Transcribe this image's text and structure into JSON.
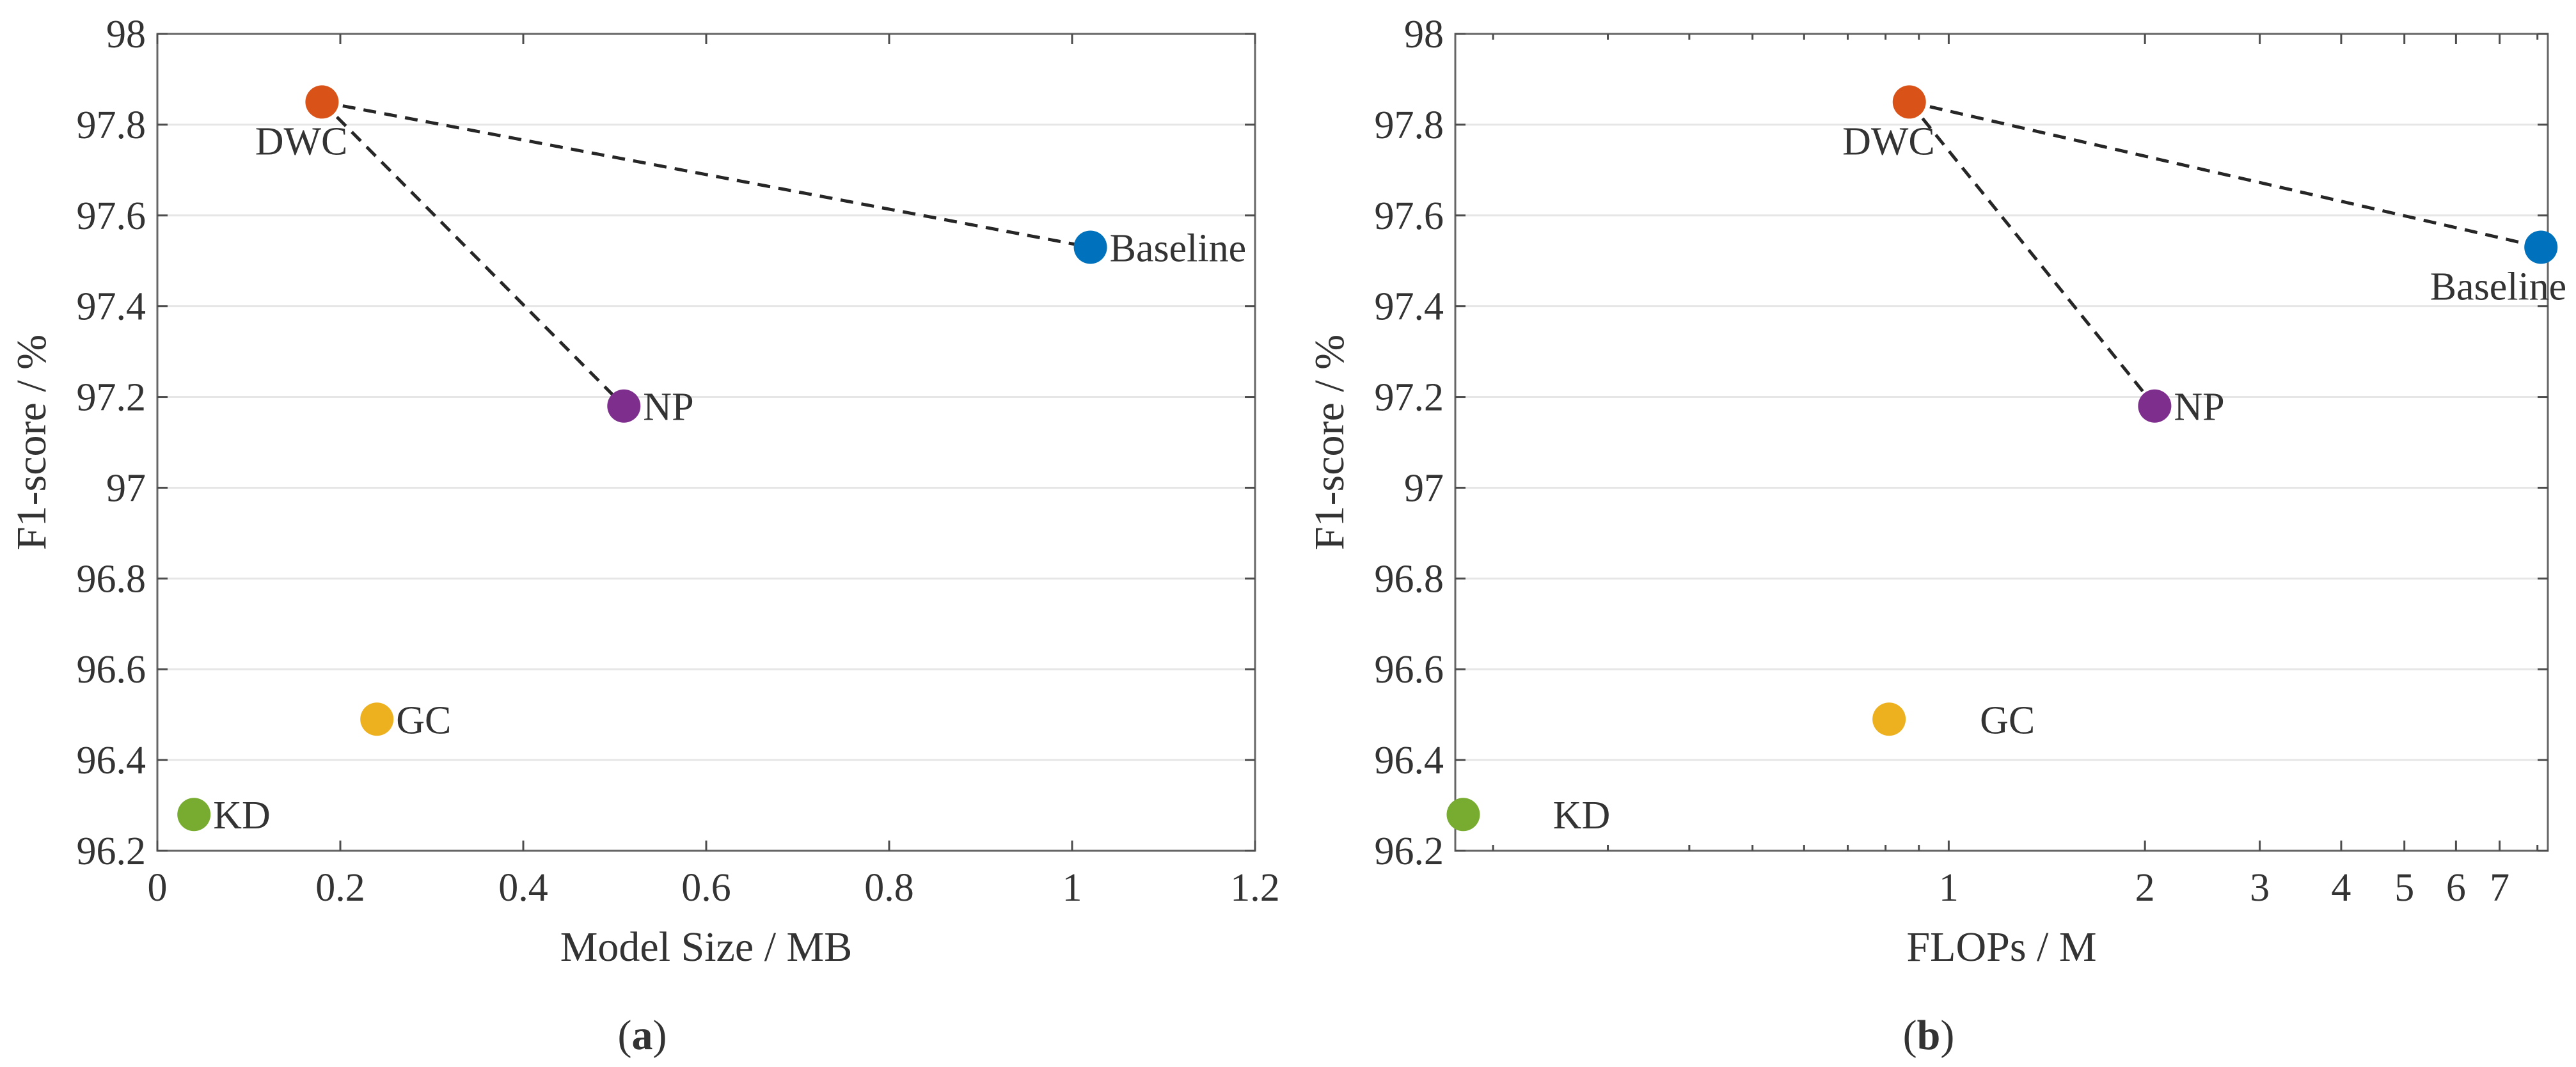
{
  "chart_data": [
    {
      "type": "scatter",
      "caption": "(a)",
      "caption_letter": "a",
      "xlabel": "Model Size / MB",
      "ylabel": "F1-score / %",
      "xscale": "linear",
      "xlim": [
        0,
        1.2
      ],
      "ylim": [
        96.2,
        98
      ],
      "xticks": [
        0,
        0.2,
        0.4,
        0.6,
        0.8,
        1,
        1.2
      ],
      "xtick_labels": [
        "0",
        "0.2",
        "0.4",
        "0.6",
        "0.8",
        "1",
        "1.2"
      ],
      "yticks": [
        96.2,
        96.4,
        96.6,
        96.8,
        97,
        97.2,
        97.4,
        97.6,
        97.8,
        98
      ],
      "ytick_labels": [
        "96.2",
        "96.4",
        "96.6",
        "96.8",
        "97",
        "97.2",
        "97.4",
        "97.6",
        "97.8",
        "98"
      ],
      "grid": "horizontal",
      "points": [
        {
          "label": "DWC",
          "x": 0.18,
          "y": 97.85,
          "color": "#d95319",
          "label_side": "below-left"
        },
        {
          "label": "Baseline",
          "x": 1.02,
          "y": 97.53,
          "color": "#0072bd",
          "label_side": "right"
        },
        {
          "label": "NP",
          "x": 0.51,
          "y": 97.18,
          "color": "#7e2f8e",
          "label_side": "right"
        },
        {
          "label": "GC",
          "x": 0.24,
          "y": 96.49,
          "color": "#edb120",
          "label_side": "right"
        },
        {
          "label": "KD",
          "x": 0.04,
          "y": 96.28,
          "color": "#77ac30",
          "label_side": "right"
        }
      ],
      "dashed_links": [
        [
          "DWC",
          "Baseline"
        ],
        [
          "DWC",
          "NP"
        ]
      ]
    },
    {
      "type": "scatter",
      "caption": "(b)",
      "caption_letter": "b",
      "xlabel": "FLOPs / M",
      "ylabel": "F1-score / %",
      "xscale": "log",
      "xlim": [
        0.175,
        8.3
      ],
      "ylim": [
        96.2,
        98
      ],
      "xticks": [
        1,
        2,
        3,
        4,
        5,
        6,
        7
      ],
      "xtick_labels": [
        "1",
        "2",
        "3",
        "4",
        "5",
        "6",
        "7"
      ],
      "xminor_ticks": [
        0.2,
        0.3,
        0.4,
        0.5,
        0.6,
        0.7,
        0.8,
        0.9,
        8
      ],
      "yticks": [
        96.2,
        96.4,
        96.6,
        96.8,
        97,
        97.2,
        97.4,
        97.6,
        97.8,
        98
      ],
      "ytick_labels": [
        "96.2",
        "96.4",
        "96.6",
        "96.8",
        "97",
        "97.2",
        "97.4",
        "97.6",
        "97.8",
        "98"
      ],
      "grid": "horizontal",
      "points": [
        {
          "label": "DWC",
          "x": 0.87,
          "y": 97.85,
          "color": "#d95319",
          "label_side": "below-left"
        },
        {
          "label": "Baseline",
          "x": 8.1,
          "y": 97.53,
          "color": "#0072bd",
          "label_side": "below-left"
        },
        {
          "label": "NP",
          "x": 2.07,
          "y": 97.18,
          "color": "#7e2f8e",
          "label_side": "right"
        },
        {
          "label": "GC",
          "x": 0.81,
          "y": 96.49,
          "color": "#edb120",
          "label_side": "right-far"
        },
        {
          "label": "KD",
          "x": 0.18,
          "y": 96.28,
          "color": "#77ac30",
          "label_side": "right-far"
        }
      ],
      "dashed_links": [
        [
          "DWC",
          "Baseline"
        ],
        [
          "DWC",
          "NP"
        ]
      ]
    }
  ]
}
